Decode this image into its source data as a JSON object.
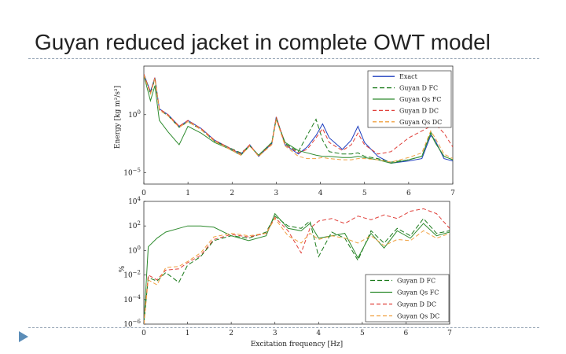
{
  "slide": {
    "title": "Guyan reduced jacket in complete OWT model"
  },
  "chart_data": [
    {
      "type": "line",
      "title": "",
      "xlabel": "",
      "ylabel": "Energy [kg m²/s²]",
      "yscale": "log",
      "xlim": [
        0,
        7
      ],
      "ylim_log10": [
        -6,
        4.2
      ],
      "x_ticks": [
        "0",
        "1",
        "2",
        "3",
        "4",
        "5",
        "6",
        "7"
      ],
      "y_ticks": [
        {
          "label": "10^0",
          "value": 1
        },
        {
          "label": "10^-5",
          "value": 1e-05
        }
      ],
      "legend_position": "top-right",
      "legend": [
        "Exact",
        "Guyan D FC",
        "Guyan Qs FC",
        "Guyan D DC",
        "Guyan Qs DC"
      ],
      "series": [
        {
          "name": "Exact",
          "color": "#1f3fbf",
          "dash": "",
          "x": [
            0.0,
            0.15,
            0.25,
            0.35,
            0.55,
            0.8,
            1.0,
            1.3,
            1.6,
            1.9,
            2.2,
            2.4,
            2.6,
            2.9,
            3.0,
            3.2,
            3.5,
            3.7,
            3.9,
            4.05,
            4.2,
            4.5,
            4.7,
            4.85,
            5.0,
            5.3,
            5.6,
            6.0,
            6.3,
            6.5,
            6.6,
            6.8,
            7.0
          ],
          "y": [
            3.5,
            2.0,
            3.2,
            0.5,
            0.0,
            -1.0,
            -0.5,
            -1.2,
            -2.2,
            -2.8,
            -3.4,
            -2.6,
            -3.6,
            -2.5,
            -0.2,
            -2.6,
            -3.4,
            -2.8,
            -1.8,
            -0.8,
            -2.0,
            -3.0,
            -2.2,
            -1.0,
            -2.4,
            -3.6,
            -4.2,
            -4.0,
            -3.8,
            -1.8,
            -2.2,
            -3.8,
            -4.0
          ]
        },
        {
          "name": "Guyan D FC",
          "color": "#1a7a1a",
          "dash": "6,3",
          "x": [
            0.0,
            0.15,
            0.25,
            0.35,
            0.55,
            0.8,
            1.0,
            1.3,
            1.6,
            1.9,
            2.2,
            2.4,
            2.6,
            2.9,
            3.0,
            3.2,
            3.5,
            3.7,
            3.9,
            4.05,
            4.2,
            4.5,
            4.7,
            4.85,
            5.0,
            5.3,
            5.6,
            6.0,
            6.3,
            6.5,
            6.6,
            6.8,
            7.0
          ],
          "y": [
            3.5,
            1.8,
            3.1,
            0.4,
            -0.1,
            -1.1,
            -0.6,
            -1.3,
            -2.3,
            -2.8,
            -3.3,
            -2.7,
            -3.5,
            -2.4,
            -0.3,
            -2.5,
            -3.2,
            -1.8,
            -0.4,
            -2.2,
            -3.2,
            -3.4,
            -3.4,
            -3.3,
            -3.6,
            -3.8,
            -4.1,
            -3.9,
            -3.6,
            -1.5,
            -2.4,
            -3.6,
            -3.9
          ]
        },
        {
          "name": "Guyan Qs FC",
          "color": "#2e8b2e",
          "dash": "",
          "x": [
            0.0,
            0.15,
            0.25,
            0.35,
            0.55,
            0.8,
            1.0,
            1.3,
            1.6,
            1.9,
            2.2,
            2.4,
            2.6,
            2.9,
            3.0,
            3.2,
            3.5,
            3.7,
            3.9,
            4.05,
            4.2,
            4.5,
            4.7,
            4.85,
            5.0,
            5.3,
            5.6,
            6.0,
            6.3,
            6.5,
            6.6,
            6.8,
            7.0
          ],
          "y": [
            3.4,
            1.2,
            2.5,
            -0.5,
            -1.5,
            -2.6,
            -1.0,
            -1.6,
            -2.4,
            -2.9,
            -3.5,
            -2.7,
            -3.5,
            -2.4,
            -0.4,
            -2.4,
            -3.1,
            -3.3,
            -3.5,
            -3.6,
            -3.6,
            -3.7,
            -3.7,
            -3.6,
            -3.7,
            -3.9,
            -4.2,
            -3.9,
            -3.6,
            -1.6,
            -2.4,
            -3.6,
            -3.9
          ]
        },
        {
          "name": "Guyan D DC",
          "color": "#e0403a",
          "dash": "5,3",
          "x": [
            0.0,
            0.15,
            0.25,
            0.35,
            0.55,
            0.8,
            1.0,
            1.3,
            1.6,
            1.9,
            2.2,
            2.4,
            2.6,
            2.9,
            3.0,
            3.2,
            3.5,
            3.7,
            3.9,
            4.05,
            4.2,
            4.5,
            4.7,
            4.85,
            5.0,
            5.3,
            5.6,
            6.0,
            6.3,
            6.5,
            6.6,
            6.8,
            7.0
          ],
          "y": [
            3.5,
            1.9,
            3.2,
            0.5,
            0.0,
            -1.0,
            -0.5,
            -1.2,
            -2.2,
            -2.8,
            -3.4,
            -2.6,
            -3.6,
            -2.5,
            -0.2,
            -2.6,
            -3.3,
            -3.0,
            -2.0,
            -1.2,
            -2.4,
            -3.1,
            -2.6,
            -1.6,
            -2.6,
            -3.4,
            -3.2,
            -2.0,
            -1.4,
            -1.0,
            -0.8,
            -1.6,
            -2.8
          ]
        },
        {
          "name": "Guyan Qs DC",
          "color": "#f0a040",
          "dash": "5,3",
          "x": [
            0.0,
            0.15,
            0.25,
            0.35,
            0.55,
            0.8,
            1.0,
            1.3,
            1.6,
            1.9,
            2.2,
            2.4,
            2.6,
            2.9,
            3.0,
            3.2,
            3.5,
            3.7,
            3.9,
            4.05,
            4.2,
            4.5,
            4.7,
            4.85,
            5.0,
            5.3,
            5.6,
            6.0,
            6.3,
            6.5,
            6.6,
            6.8,
            7.0
          ],
          "y": [
            3.4,
            1.8,
            3.1,
            0.4,
            -0.1,
            -1.1,
            -0.6,
            -1.3,
            -2.3,
            -2.9,
            -3.5,
            -2.7,
            -3.6,
            -2.6,
            -0.4,
            -2.7,
            -3.6,
            -3.8,
            -3.8,
            -3.7,
            -3.8,
            -3.9,
            -3.9,
            -3.8,
            -3.8,
            -3.9,
            -4.1,
            -3.7,
            -3.3,
            -1.4,
            -2.0,
            -3.4,
            -3.8
          ]
        }
      ]
    },
    {
      "type": "line",
      "title": "",
      "xlabel": "Excitation frequency [Hz]",
      "ylabel": "%",
      "yscale": "log",
      "xlim": [
        0,
        7
      ],
      "ylim_log10": [
        -6,
        4
      ],
      "x_ticks": [
        "0",
        "1",
        "2",
        "3",
        "4",
        "5",
        "6",
        "7"
      ],
      "y_ticks": [
        {
          "label": "10^4",
          "value": 10000
        },
        {
          "label": "10^2",
          "value": 100
        },
        {
          "label": "10^0",
          "value": 1
        },
        {
          "label": "10^-2",
          "value": 0.01
        },
        {
          "label": "10^-4",
          "value": 0.0001
        },
        {
          "label": "10^-6",
          "value": 1e-06
        }
      ],
      "legend_position": "bottom-right",
      "legend": [
        "Guyan D FC",
        "Guyan Qs FC",
        "Guyan D DC",
        "Guyan Qs DC"
      ],
      "series": [
        {
          "name": "Guyan D FC",
          "color": "#1a7a1a",
          "dash": "6,3",
          "x": [
            0.0,
            0.1,
            0.3,
            0.5,
            0.8,
            1.0,
            1.3,
            1.6,
            2.0,
            2.4,
            2.8,
            3.0,
            3.3,
            3.6,
            3.8,
            4.0,
            4.3,
            4.6,
            4.9,
            5.2,
            5.5,
            5.8,
            6.1,
            6.4,
            6.7,
            7.0
          ],
          "y": [
            -6,
            -2.2,
            -2.5,
            -1.8,
            -2.6,
            -1.2,
            -0.5,
            0.8,
            1.2,
            1.0,
            1.5,
            2.8,
            2.0,
            1.8,
            2.4,
            -0.5,
            1.5,
            1.0,
            -0.8,
            1.6,
            0.6,
            1.8,
            1.2,
            2.6,
            1.4,
            1.6
          ]
        },
        {
          "name": "Guyan Qs FC",
          "color": "#2e8b2e",
          "dash": "",
          "x": [
            0.0,
            0.1,
            0.3,
            0.5,
            0.8,
            1.0,
            1.3,
            1.6,
            2.0,
            2.4,
            2.8,
            3.0,
            3.3,
            3.6,
            3.8,
            4.0,
            4.3,
            4.6,
            4.9,
            5.2,
            5.5,
            5.8,
            6.1,
            6.4,
            6.7,
            7.0
          ],
          "y": [
            -6,
            0.3,
            1.0,
            1.5,
            1.8,
            2.0,
            2.0,
            1.9,
            1.2,
            0.8,
            1.2,
            3.0,
            1.8,
            1.6,
            2.2,
            1.0,
            1.2,
            1.4,
            -0.6,
            1.4,
            0.2,
            1.6,
            1.0,
            2.2,
            1.2,
            1.5
          ]
        },
        {
          "name": "Guyan D DC",
          "color": "#e0403a",
          "dash": "5,3",
          "x": [
            0.0,
            0.1,
            0.3,
            0.5,
            0.8,
            1.0,
            1.3,
            1.6,
            2.0,
            2.4,
            2.8,
            3.0,
            3.3,
            3.6,
            3.8,
            4.0,
            4.3,
            4.6,
            4.9,
            5.2,
            5.5,
            5.8,
            6.1,
            6.4,
            6.7,
            7.0
          ],
          "y": [
            -6,
            -2.0,
            -2.4,
            -1.6,
            -1.5,
            -1.0,
            -0.4,
            0.9,
            1.3,
            1.1,
            1.4,
            2.7,
            1.6,
            -0.2,
            1.8,
            2.4,
            2.6,
            2.2,
            2.8,
            2.5,
            2.9,
            2.6,
            3.2,
            3.4,
            3.0,
            1.8
          ]
        },
        {
          "name": "Guyan Qs DC",
          "color": "#f0a040",
          "dash": "5,3",
          "x": [
            0.0,
            0.1,
            0.3,
            0.5,
            0.8,
            1.0,
            1.3,
            1.6,
            2.0,
            2.4,
            2.8,
            3.0,
            3.3,
            3.6,
            3.8,
            4.0,
            4.3,
            4.6,
            4.9,
            5.2,
            5.5,
            5.8,
            6.1,
            6.4,
            6.7,
            7.0
          ],
          "y": [
            -6,
            -2.4,
            -2.8,
            -1.4,
            -1.3,
            -0.9,
            -0.2,
            1.1,
            1.4,
            1.2,
            1.4,
            2.6,
            1.2,
            0.6,
            1.4,
            0.9,
            1.2,
            1.0,
            0.6,
            1.2,
            0.4,
            0.9,
            0.8,
            1.6,
            1.0,
            1.4
          ]
        }
      ]
    }
  ]
}
